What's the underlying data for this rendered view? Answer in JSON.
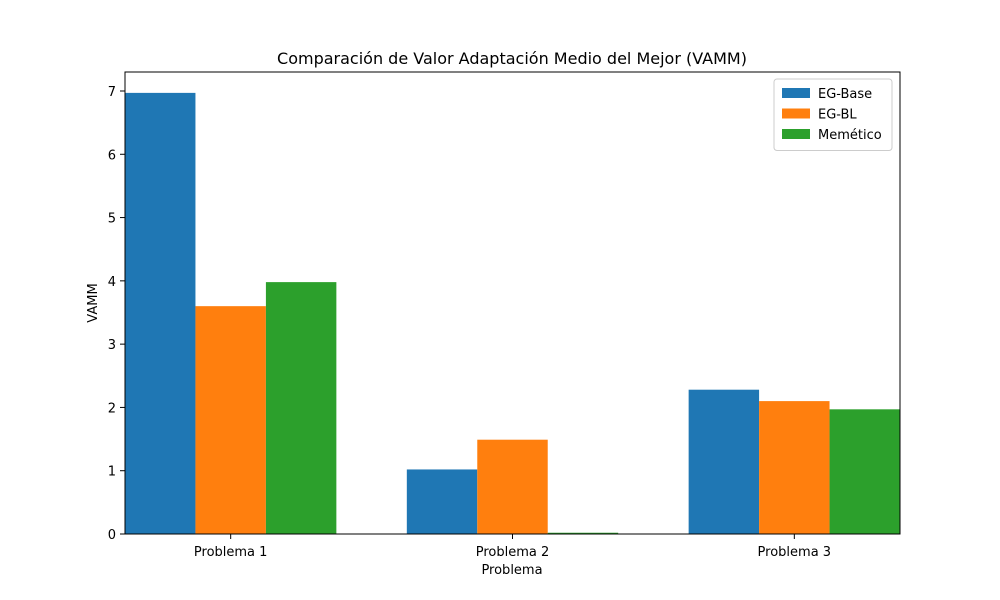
{
  "chart_data": {
    "type": "bar",
    "title": "Comparación de Valor Adaptación Medio del Mejor (VAMM)",
    "xlabel": "Problema",
    "ylabel": "VAMM",
    "categories": [
      "Problema 1",
      "Problema 2",
      "Problema 3"
    ],
    "series": [
      {
        "name": "EG-Base",
        "color": "#1f77b4",
        "values": [
          6.97,
          1.02,
          2.28
        ]
      },
      {
        "name": "EG-BL",
        "color": "#ff7f0e",
        "values": [
          3.6,
          1.49,
          2.1
        ]
      },
      {
        "name": "Memético",
        "color": "#2ca02c",
        "values": [
          3.98,
          0.02,
          1.97
        ]
      }
    ],
    "ylim": [
      0,
      7.3
    ],
    "yticks": [
      0,
      1,
      2,
      3,
      4,
      5,
      6,
      7
    ],
    "legend_position": "top-right",
    "grid": false
  }
}
